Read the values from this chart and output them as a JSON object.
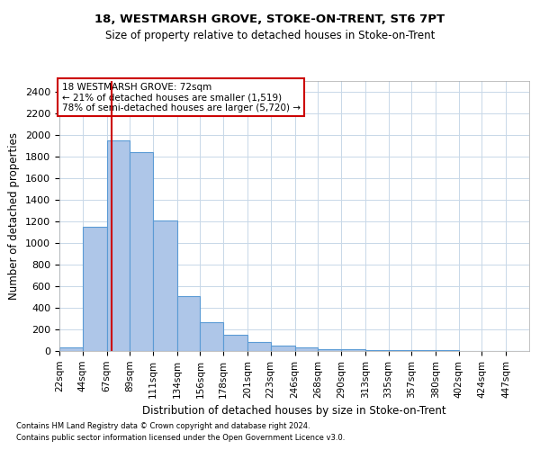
{
  "title1": "18, WESTMARSH GROVE, STOKE-ON-TRENT, ST6 7PT",
  "title2": "Size of property relative to detached houses in Stoke-on-Trent",
  "xlabel": "Distribution of detached houses by size in Stoke-on-Trent",
  "ylabel": "Number of detached properties",
  "footnote1": "Contains HM Land Registry data © Crown copyright and database right 2024.",
  "footnote2": "Contains public sector information licensed under the Open Government Licence v3.0.",
  "annotation_line1": "18 WESTMARSH GROVE: 72sqm",
  "annotation_line2": "← 21% of detached houses are smaller (1,519)",
  "annotation_line3": "78% of semi-detached houses are larger (5,720) →",
  "bar_color": "#aec6e8",
  "bar_edge_color": "#5b9bd5",
  "grid_color": "#c8d8e8",
  "vline_color": "#cc0000",
  "annotation_box_edge": "#cc0000",
  "bin_edges": [
    22,
    44,
    67,
    89,
    111,
    134,
    156,
    178,
    201,
    223,
    246,
    268,
    290,
    313,
    335,
    357,
    380,
    402,
    424,
    447,
    469
  ],
  "bar_heights": [
    35,
    1150,
    1950,
    1840,
    1210,
    510,
    265,
    150,
    80,
    50,
    30,
    20,
    15,
    10,
    8,
    6,
    5,
    4,
    3,
    2
  ],
  "vline_x": 72,
  "ylim": [
    0,
    2500
  ],
  "yticks": [
    0,
    200,
    400,
    600,
    800,
    1000,
    1200,
    1400,
    1600,
    1800,
    2000,
    2200,
    2400
  ],
  "background_color": "#ffffff"
}
